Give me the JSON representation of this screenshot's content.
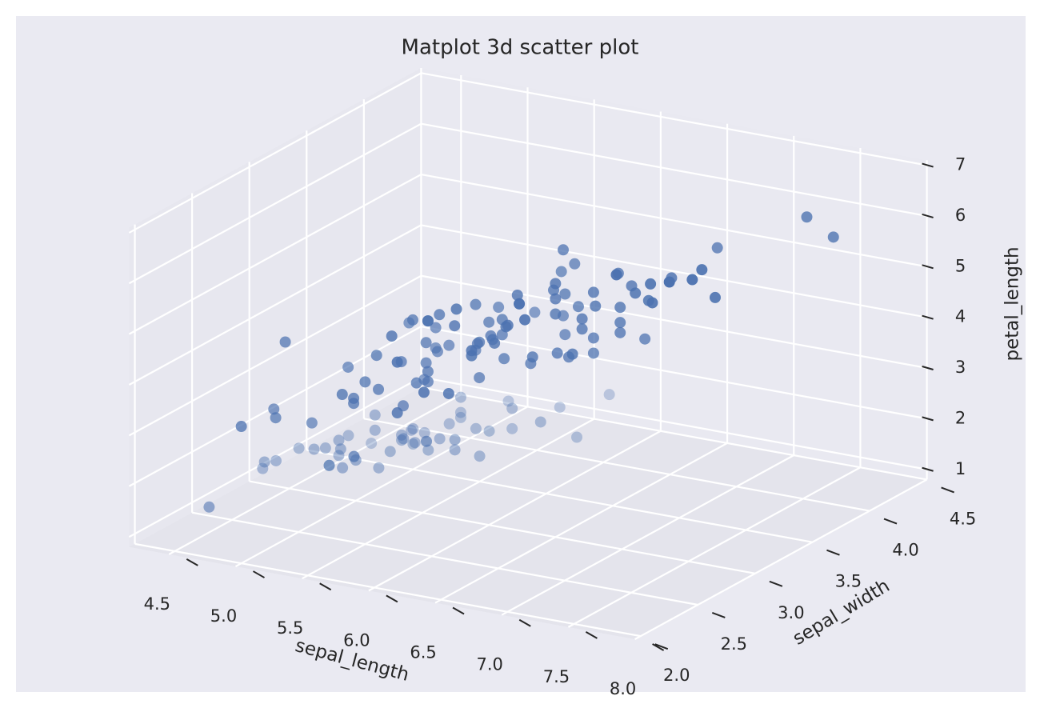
{
  "chart_data": {
    "type": "scatter3d",
    "title": "Matplot 3d scatter plot",
    "xlabel": "sepal_length",
    "ylabel": "sepal_width",
    "zlabel": "petal_length",
    "color": "#4c72b0",
    "grid": true,
    "depthshade": true,
    "xlim": [
      4.2,
      8.0
    ],
    "ylim": [
      1.95,
      4.5
    ],
    "zlim": [
      0.8,
      7.1
    ],
    "xticks": [
      4.5,
      {
        "value": 5,
        "label": "5.0"
      },
      5.5,
      {
        "value": 6,
        "label": "6.0"
      },
      6.5,
      {
        "value": 7,
        "label": "7.0"
      },
      7.5,
      {
        "value": 8,
        "label": "8.0"
      }
    ],
    "yticks": [
      {
        "value": 2,
        "label": "2.0"
      },
      2.5,
      {
        "value": 3,
        "label": "3.0"
      },
      3.5,
      {
        "value": 4,
        "label": "4.0"
      },
      4.5
    ],
    "zticks": [
      1,
      2,
      3,
      4,
      5,
      6,
      7
    ],
    "x": [
      5.1,
      4.9,
      4.7,
      4.6,
      5.0,
      5.4,
      4.6,
      5.0,
      4.4,
      4.9,
      5.4,
      4.8,
      4.8,
      4.3,
      5.8,
      5.7,
      5.4,
      5.1,
      5.7,
      5.1,
      5.4,
      5.1,
      4.6,
      5.1,
      4.8,
      5.0,
      5.0,
      5.2,
      5.2,
      4.7,
      4.8,
      5.4,
      5.2,
      5.5,
      4.9,
      5.0,
      5.5,
      4.9,
      4.4,
      5.1,
      5.0,
      4.5,
      4.4,
      5.0,
      5.1,
      4.8,
      5.1,
      4.6,
      5.3,
      5.0,
      7.0,
      6.4,
      6.9,
      5.5,
      6.5,
      5.7,
      6.3,
      4.9,
      6.6,
      5.2,
      5.0,
      5.9,
      6.0,
      6.1,
      5.6,
      6.7,
      5.6,
      5.8,
      6.2,
      5.6,
      5.9,
      6.1,
      6.3,
      6.1,
      6.4,
      6.6,
      6.8,
      6.7,
      6.0,
      5.7,
      5.5,
      5.5,
      5.8,
      6.0,
      5.4,
      6.0,
      6.7,
      6.3,
      5.6,
      5.5,
      5.5,
      6.1,
      5.8,
      5.0,
      5.6,
      5.7,
      5.7,
      6.2,
      5.1,
      5.7,
      6.3,
      5.8,
      7.1,
      6.3,
      6.5,
      7.6,
      4.9,
      7.3,
      6.7,
      7.2,
      6.5,
      6.4,
      6.8,
      5.7,
      5.8,
      6.4,
      6.5,
      7.7,
      7.7,
      6.0,
      6.9,
      5.6,
      7.7,
      6.3,
      6.7,
      7.2,
      6.2,
      6.1,
      6.4,
      7.2,
      7.4,
      7.9,
      6.4,
      6.3,
      6.1,
      7.7,
      6.3,
      6.4,
      6.0,
      6.9,
      6.7,
      6.9,
      5.8,
      6.8,
      6.7,
      6.7,
      6.3,
      6.5,
      6.2,
      5.9
    ],
    "y": [
      3.5,
      3.0,
      3.2,
      3.1,
      3.6,
      3.9,
      3.4,
      3.4,
      2.9,
      3.1,
      3.7,
      3.4,
      3.0,
      3.0,
      4.0,
      4.4,
      3.9,
      3.5,
      3.8,
      3.8,
      3.4,
      3.7,
      3.6,
      3.3,
      3.4,
      3.0,
      3.4,
      3.5,
      3.4,
      3.2,
      3.1,
      3.4,
      4.1,
      4.2,
      3.1,
      3.2,
      3.5,
      3.6,
      3.0,
      3.4,
      3.5,
      2.3,
      3.2,
      3.5,
      3.8,
      3.0,
      3.8,
      3.2,
      3.7,
      3.3,
      3.2,
      3.2,
      3.1,
      2.3,
      2.8,
      2.8,
      3.3,
      2.4,
      2.9,
      2.7,
      2.0,
      3.0,
      2.2,
      2.9,
      2.9,
      3.1,
      3.0,
      2.7,
      2.2,
      2.5,
      3.2,
      2.8,
      2.5,
      2.8,
      2.9,
      3.0,
      2.8,
      3.0,
      2.9,
      2.6,
      2.4,
      2.4,
      2.7,
      2.7,
      3.0,
      3.4,
      3.1,
      2.3,
      3.0,
      2.5,
      2.6,
      3.0,
      2.6,
      2.3,
      2.7,
      3.0,
      2.9,
      2.9,
      2.5,
      2.8,
      3.3,
      2.7,
      3.0,
      2.9,
      3.0,
      3.0,
      2.5,
      2.9,
      2.5,
      3.6,
      3.2,
      2.7,
      3.0,
      2.5,
      2.8,
      3.2,
      3.0,
      3.8,
      2.6,
      2.2,
      3.2,
      2.8,
      2.8,
      2.7,
      3.3,
      3.2,
      2.8,
      3.0,
      2.8,
      3.0,
      2.8,
      3.8,
      2.8,
      2.8,
      2.6,
      3.0,
      3.4,
      3.1,
      3.0,
      3.1,
      3.1,
      3.1,
      2.7,
      3.2,
      3.3,
      3.0,
      2.5,
      3.0,
      3.4,
      3.0
    ],
    "z": [
      1.4,
      1.4,
      1.3,
      1.5,
      1.4,
      1.7,
      1.4,
      1.5,
      1.4,
      1.5,
      1.5,
      1.6,
      1.4,
      1.1,
      1.2,
      1.5,
      1.3,
      1.4,
      1.7,
      1.5,
      1.7,
      1.5,
      1.0,
      1.7,
      1.9,
      1.6,
      1.6,
      1.5,
      1.4,
      1.6,
      1.6,
      1.5,
      1.5,
      1.4,
      1.5,
      1.2,
      1.3,
      1.4,
      1.3,
      1.5,
      1.3,
      1.3,
      1.3,
      1.6,
      1.9,
      1.4,
      1.6,
      1.4,
      1.5,
      1.4,
      4.7,
      4.5,
      4.9,
      4.0,
      4.6,
      4.5,
      4.7,
      3.3,
      4.6,
      3.9,
      3.5,
      4.2,
      4.0,
      4.7,
      3.6,
      4.4,
      4.5,
      4.1,
      4.5,
      3.9,
      4.8,
      4.0,
      4.9,
      4.7,
      4.3,
      4.4,
      4.8,
      5.0,
      4.5,
      3.5,
      3.8,
      3.7,
      3.9,
      5.1,
      4.5,
      4.5,
      4.7,
      4.4,
      4.1,
      4.0,
      4.4,
      4.6,
      4.0,
      3.3,
      4.2,
      4.2,
      4.2,
      4.3,
      3.0,
      4.1,
      6.0,
      5.1,
      5.9,
      5.6,
      5.8,
      6.6,
      4.5,
      6.3,
      5.8,
      6.1,
      5.1,
      5.3,
      5.5,
      5.0,
      5.1,
      5.3,
      5.5,
      6.7,
      6.9,
      5.0,
      5.7,
      4.9,
      6.7,
      4.9,
      5.7,
      6.0,
      4.8,
      4.9,
      5.6,
      5.8,
      6.1,
      6.4,
      5.6,
      5.1,
      5.6,
      6.1,
      5.6,
      5.5,
      4.8,
      5.4,
      5.6,
      5.1,
      5.1,
      5.9,
      5.7,
      5.2,
      5.0,
      5.2,
      5.4,
      5.1
    ]
  }
}
